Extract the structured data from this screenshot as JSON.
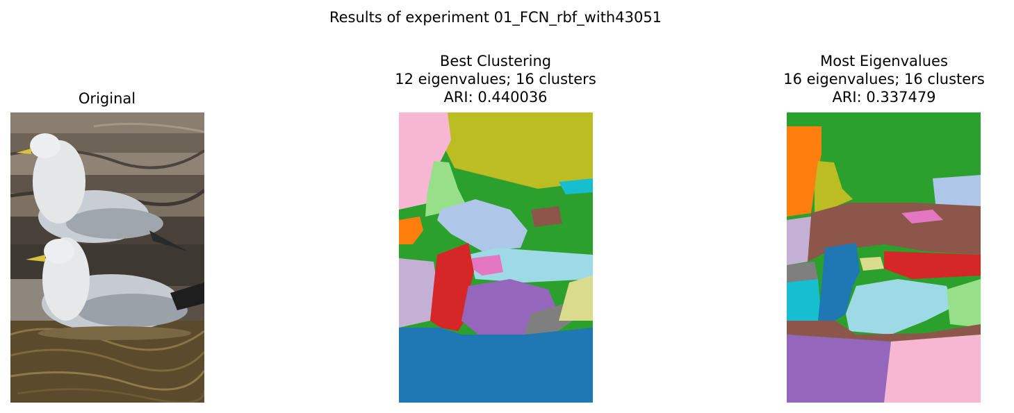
{
  "figure": {
    "suptitle": "Results of experiment 01_FCN_rbf_with43051"
  },
  "panels": {
    "original": {
      "title": "Original"
    },
    "best": {
      "title_line1": "Best Clustering",
      "title_line2": "12 eigenvalues; 16 clusters",
      "title_line3": "ARI: 0.440036",
      "eigenvalues": 12,
      "clusters": 16,
      "ari": 0.440036
    },
    "most": {
      "title_line1": "Most Eigenvalues",
      "title_line2": "16 eigenvalues; 16 clusters",
      "title_line3": "ARI: 0.337479",
      "eigenvalues": 16,
      "clusters": 16,
      "ari": 0.337479
    }
  },
  "colors": {
    "tab_blue": "#1f77b4",
    "tab_orange": "#ff7f0e",
    "tab_green": "#2ca02c",
    "tab_red": "#d62728",
    "tab_purple": "#9467bd",
    "tab_brown": "#8c564b",
    "tab_pink": "#e377c2",
    "tab_gray": "#7f7f7f",
    "tab_olive": "#bcbd22",
    "tab_cyan": "#17becf",
    "light_blue": "#aec7e8",
    "light_green": "#98df8a",
    "light_purple": "#c5b0d5",
    "light_pink": "#f7b6d2",
    "light_cyan": "#9edae5",
    "light_olive": "#dbdb8d"
  }
}
